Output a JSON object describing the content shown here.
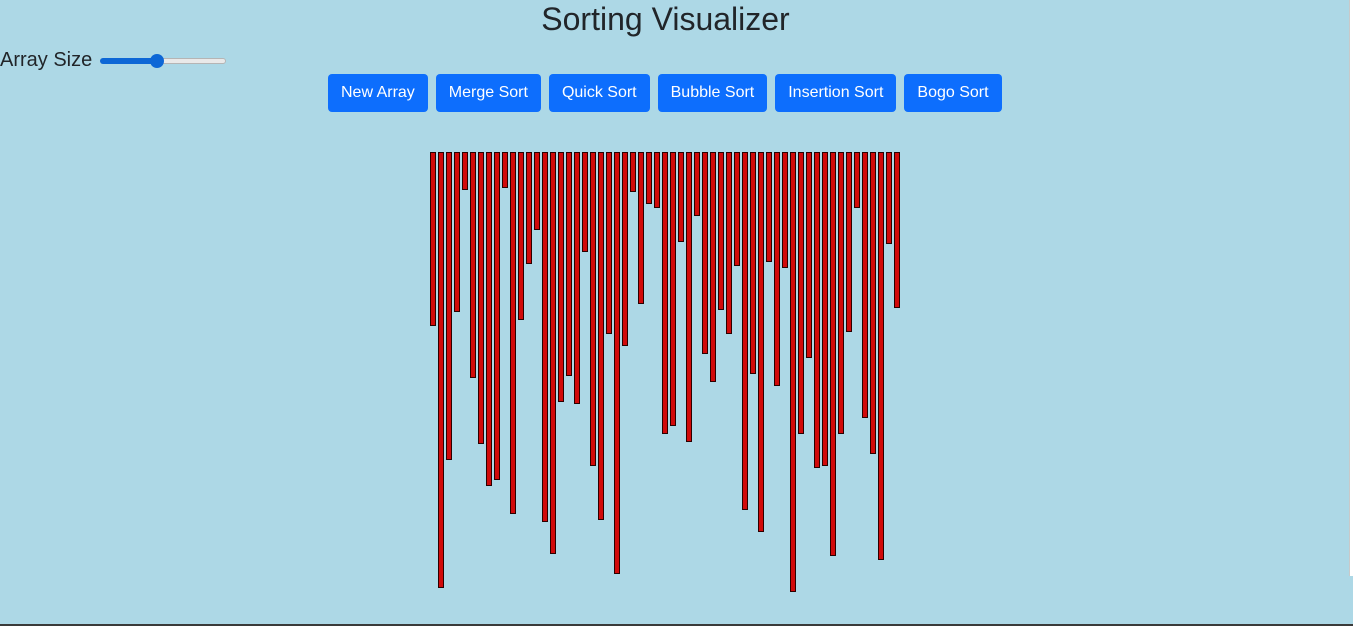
{
  "app": {
    "title": "Sorting Visualizer"
  },
  "controls": {
    "array_size_label": "Array Size",
    "array_size_fraction": 0.45
  },
  "buttons": [
    {
      "id": "new-array",
      "label": "New Array"
    },
    {
      "id": "merge-sort",
      "label": "Merge Sort"
    },
    {
      "id": "quick-sort",
      "label": "Quick Sort"
    },
    {
      "id": "bubble-sort",
      "label": "Bubble Sort"
    },
    {
      "id": "insertion-sort",
      "label": "Insertion Sort"
    },
    {
      "id": "bogo-sort",
      "label": "Bogo Sort"
    }
  ],
  "colors": {
    "background": "#add8e6",
    "bar": "#d10a0a",
    "bar_border": "#2b0000",
    "button": "#0d6efd",
    "slider": "#0d67d6"
  },
  "array": {
    "max_value": 440,
    "values": [
      174,
      436,
      308,
      160,
      38,
      226,
      292,
      334,
      328,
      36,
      362,
      168,
      112,
      78,
      370,
      402,
      250,
      224,
      252,
      100,
      314,
      368,
      182,
      422,
      194,
      40,
      152,
      52,
      56,
      282,
      274,
      90,
      290,
      64,
      202,
      230,
      158,
      182,
      114,
      358,
      222,
      380,
      110,
      234,
      116,
      440,
      282,
      206,
      316,
      314,
      404,
      282,
      180,
      56,
      266,
      302,
      408,
      92,
      156
    ]
  }
}
